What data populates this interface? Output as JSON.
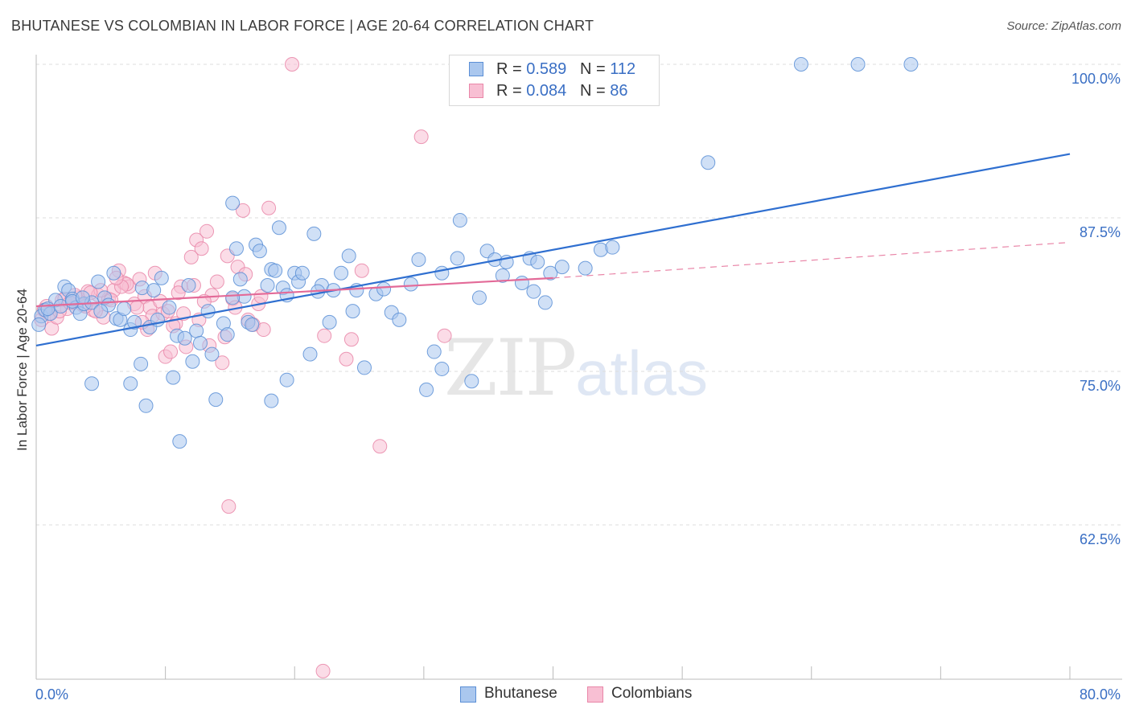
{
  "title": "BHUTANESE VS COLOMBIAN IN LABOR FORCE | AGE 20-64 CORRELATION CHART",
  "source": "Source: ZipAtlas.com",
  "watermark": {
    "zip": "ZIP",
    "atlas": "atlas"
  },
  "legend": {
    "r_label": "R =",
    "n_label": "N =",
    "rows": [
      {
        "name": "Bhutanese",
        "r": "0.589",
        "n": "112",
        "fill": "#aac7ee",
        "stroke": "#5b8fd6"
      },
      {
        "name": "Colombians",
        "r": "0.084",
        "n": "86",
        "fill": "#f8bfd3",
        "stroke": "#e986a8"
      }
    ]
  },
  "chart_data": {
    "type": "scatter",
    "title": "BHUTANESE VS COLOMBIAN IN LABOR FORCE | AGE 20-64 CORRELATION CHART",
    "xlabel": "",
    "ylabel": "In Labor Force | Age 20-64",
    "xlim": [
      0,
      80
    ],
    "ylim": [
      50,
      102
    ],
    "x_tick_labels": [
      {
        "value": 0,
        "label": "0.0%"
      },
      {
        "value": 80,
        "label": "80.0%"
      }
    ],
    "y_tick_labels": [
      {
        "value": 100,
        "label": "100.0%"
      },
      {
        "value": 87.5,
        "label": "87.5%"
      },
      {
        "value": 75,
        "label": "75.0%"
      },
      {
        "value": 62.5,
        "label": "62.5%"
      }
    ],
    "grid": true,
    "legend_position": "top-center",
    "series": [
      {
        "name": "Bhutanese",
        "color": "#5b8fd6",
        "fill": "#aac7ee",
        "trend": {
          "x": [
            0,
            80
          ],
          "y": [
            77.1,
            92.7
          ],
          "style": "solid"
        },
        "points": [
          [
            0.4,
            79.5
          ],
          [
            0.7,
            80.0
          ],
          [
            1.1,
            79.7
          ],
          [
            1.5,
            80.8
          ],
          [
            1.9,
            80.3
          ],
          [
            2.2,
            81.9
          ],
          [
            2.5,
            81.6
          ],
          [
            2.8,
            80.9
          ],
          [
            3.1,
            80.2
          ],
          [
            3.4,
            79.7
          ],
          [
            3.7,
            80.5
          ],
          [
            4.3,
            80.6
          ],
          [
            4.8,
            82.3
          ],
          [
            5.3,
            81.0
          ],
          [
            5.6,
            80.4
          ],
          [
            6.2,
            79.3
          ],
          [
            6.5,
            79.2
          ],
          [
            7.3,
            78.4
          ],
          [
            7.6,
            79.0
          ],
          [
            8.2,
            81.8
          ],
          [
            8.8,
            78.6
          ],
          [
            9.7,
            82.6
          ],
          [
            10.3,
            80.2
          ],
          [
            10.9,
            77.9
          ],
          [
            11.5,
            77.7
          ],
          [
            12.1,
            75.8
          ],
          [
            12.4,
            78.3
          ],
          [
            12.7,
            77.3
          ],
          [
            13.3,
            79.9
          ],
          [
            13.6,
            76.4
          ],
          [
            14.5,
            78.9
          ],
          [
            14.8,
            78.0
          ],
          [
            15.2,
            88.7
          ],
          [
            15.5,
            85.0
          ],
          [
            15.8,
            82.5
          ],
          [
            16.1,
            81.1
          ],
          [
            16.4,
            79.0
          ],
          [
            16.7,
            78.8
          ],
          [
            17.0,
            85.3
          ],
          [
            17.3,
            84.8
          ],
          [
            17.9,
            82.0
          ],
          [
            18.2,
            83.3
          ],
          [
            18.5,
            83.2
          ],
          [
            18.8,
            86.7
          ],
          [
            19.1,
            81.8
          ],
          [
            19.4,
            81.2
          ],
          [
            20.0,
            83.0
          ],
          [
            20.3,
            82.3
          ],
          [
            20.6,
            83.0
          ],
          [
            21.2,
            76.4
          ],
          [
            21.5,
            86.2
          ],
          [
            22.1,
            82.0
          ],
          [
            22.7,
            79.0
          ],
          [
            23.0,
            81.6
          ],
          [
            23.6,
            83.0
          ],
          [
            24.2,
            84.4
          ],
          [
            24.5,
            79.9
          ],
          [
            24.8,
            81.6
          ],
          [
            25.4,
            75.3
          ],
          [
            26.3,
            81.3
          ],
          [
            26.9,
            81.7
          ],
          [
            27.5,
            79.8
          ],
          [
            28.1,
            79.2
          ],
          [
            29.0,
            82.1
          ],
          [
            29.6,
            84.1
          ],
          [
            30.2,
            73.5
          ],
          [
            30.8,
            76.6
          ],
          [
            31.4,
            83.0
          ],
          [
            31.4,
            75.2
          ],
          [
            32.6,
            84.2
          ],
          [
            32.8,
            87.3
          ],
          [
            33.7,
            74.2
          ],
          [
            34.3,
            81.0
          ],
          [
            34.9,
            84.8
          ],
          [
            35.5,
            84.1
          ],
          [
            36.1,
            82.8
          ],
          [
            36.4,
            83.9
          ],
          [
            37.6,
            82.2
          ],
          [
            38.2,
            84.2
          ],
          [
            38.5,
            81.5
          ],
          [
            38.8,
            83.9
          ],
          [
            39.4,
            80.6
          ],
          [
            39.8,
            83.0
          ],
          [
            40.7,
            83.5
          ],
          [
            42.5,
            83.4
          ],
          [
            43.7,
            84.9
          ],
          [
            44.6,
            85.1
          ],
          [
            4.3,
            74.0
          ],
          [
            7.3,
            74.0
          ],
          [
            8.5,
            72.2
          ],
          [
            10.6,
            74.5
          ],
          [
            11.1,
            69.3
          ],
          [
            13.9,
            72.7
          ],
          [
            18.2,
            72.6
          ],
          [
            19.4,
            74.3
          ],
          [
            2.8,
            80.7
          ],
          [
            5.0,
            79.9
          ],
          [
            6.8,
            80.1
          ],
          [
            8.1,
            75.6
          ],
          [
            9.4,
            79.2
          ],
          [
            11.8,
            82.0
          ],
          [
            52.0,
            92.0
          ],
          [
            59.2,
            100.0
          ],
          [
            63.6,
            100.0
          ],
          [
            67.7,
            100.0
          ],
          [
            0.2,
            78.8
          ],
          [
            0.9,
            80.1
          ],
          [
            3.6,
            81.0
          ],
          [
            6.0,
            83.0
          ],
          [
            9.1,
            81.6
          ],
          [
            15.2,
            81.0
          ],
          [
            21.8,
            81.5
          ]
        ]
      },
      {
        "name": "Colombians",
        "color": "#e986a8",
        "fill": "#f8bfd3",
        "trend": {
          "x": [
            0,
            40
          ],
          "y": [
            80.3,
            82.6
          ],
          "style": "solid",
          "extension": {
            "x": [
              40,
              80
            ],
            "y": [
              82.6,
              85.5
            ],
            "style": "dashed"
          }
        },
        "points": [
          [
            0.4,
            79.2
          ],
          [
            0.8,
            80.3
          ],
          [
            1.2,
            78.5
          ],
          [
            1.6,
            79.4
          ],
          [
            2.0,
            80.8
          ],
          [
            2.4,
            80.1
          ],
          [
            2.8,
            80.6
          ],
          [
            3.2,
            81.0
          ],
          [
            3.6,
            80.4
          ],
          [
            4.0,
            81.5
          ],
          [
            4.4,
            80.0
          ],
          [
            4.8,
            81.2
          ],
          [
            5.2,
            79.4
          ],
          [
            5.6,
            80.9
          ],
          [
            6.0,
            81.6
          ],
          [
            6.4,
            83.2
          ],
          [
            6.8,
            82.2
          ],
          [
            7.2,
            81.9
          ],
          [
            7.6,
            80.5
          ],
          [
            8.0,
            82.5
          ],
          [
            8.4,
            81.1
          ],
          [
            8.8,
            80.2
          ],
          [
            9.2,
            83.0
          ],
          [
            9.6,
            80.7
          ],
          [
            10.0,
            76.2
          ],
          [
            10.4,
            76.6
          ],
          [
            10.8,
            78.9
          ],
          [
            11.2,
            81.9
          ],
          [
            11.6,
            77.0
          ],
          [
            12.0,
            84.3
          ],
          [
            12.4,
            85.7
          ],
          [
            12.8,
            85.0
          ],
          [
            13.2,
            86.4
          ],
          [
            13.6,
            81.2
          ],
          [
            14.0,
            82.3
          ],
          [
            14.4,
            75.7
          ],
          [
            14.8,
            84.4
          ],
          [
            15.2,
            80.9
          ],
          [
            15.6,
            83.5
          ],
          [
            16.0,
            88.1
          ],
          [
            16.4,
            79.2
          ],
          [
            16.8,
            78.8
          ],
          [
            17.2,
            80.5
          ],
          [
            17.6,
            78.4
          ],
          [
            18.0,
            88.3
          ],
          [
            19.8,
            100.0
          ],
          [
            22.3,
            77.9
          ],
          [
            24.0,
            76.0
          ],
          [
            24.4,
            77.6
          ],
          [
            25.2,
            83.2
          ],
          [
            26.6,
            68.9
          ],
          [
            29.8,
            94.1
          ],
          [
            31.6,
            77.9
          ],
          [
            14.9,
            64.0
          ],
          [
            22.2,
            50.6
          ],
          [
            1.0,
            79.7
          ],
          [
            3.0,
            81.2
          ],
          [
            5.0,
            81.6
          ],
          [
            7.0,
            82.1
          ],
          [
            9.0,
            79.5
          ],
          [
            11.0,
            81.4
          ],
          [
            13.0,
            80.7
          ],
          [
            2.2,
            80.9
          ],
          [
            4.6,
            79.9
          ],
          [
            6.6,
            81.9
          ],
          [
            8.6,
            78.4
          ],
          [
            10.6,
            78.7
          ],
          [
            12.6,
            79.2
          ],
          [
            14.6,
            77.8
          ],
          [
            0.6,
            80.0
          ],
          [
            1.8,
            79.9
          ],
          [
            3.8,
            80.3
          ],
          [
            5.8,
            80.8
          ],
          [
            7.8,
            80.2
          ],
          [
            9.8,
            79.7
          ],
          [
            11.4,
            79.7
          ],
          [
            13.4,
            77.1
          ],
          [
            15.4,
            80.2
          ],
          [
            16.2,
            82.9
          ],
          [
            17.4,
            81.1
          ],
          [
            2.6,
            80.6
          ],
          [
            4.2,
            81.4
          ],
          [
            6.2,
            82.6
          ],
          [
            8.2,
            79.0
          ],
          [
            10.2,
            79.9
          ],
          [
            12.2,
            82.0
          ]
        ]
      }
    ]
  }
}
